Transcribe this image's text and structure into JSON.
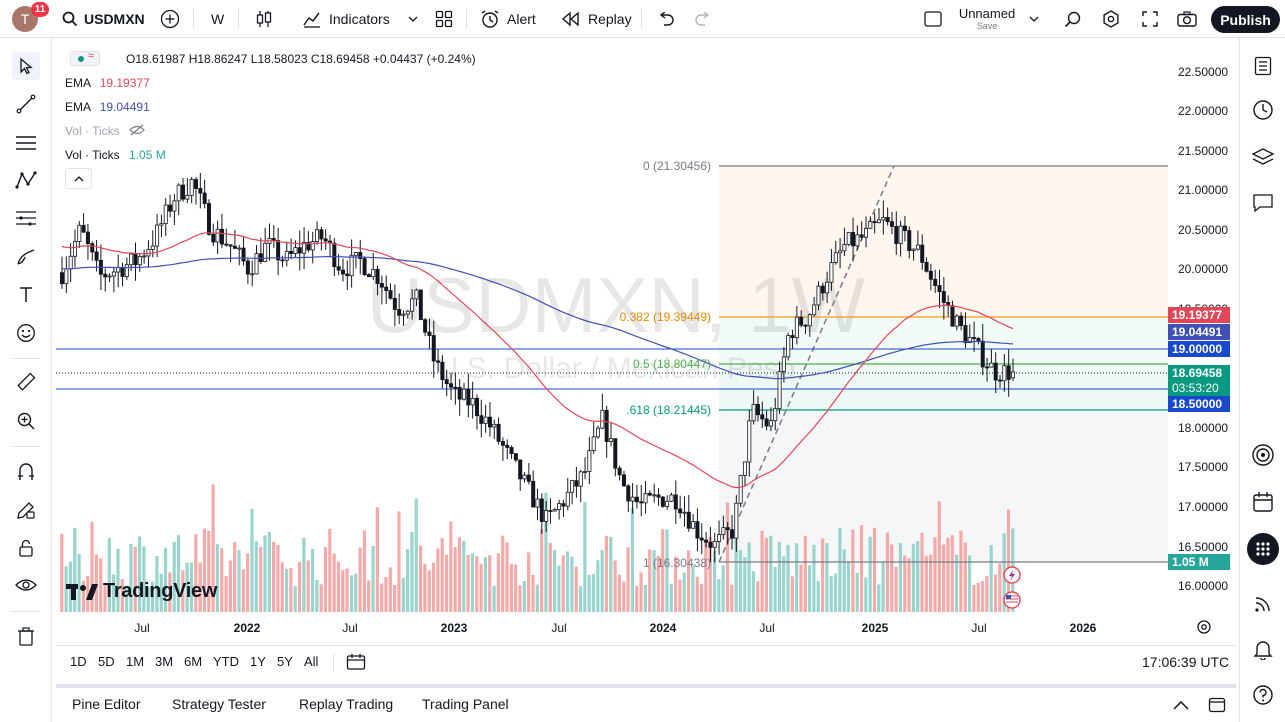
{
  "toolbar": {
    "avatar_letter": "T",
    "notification_count": "11",
    "symbol": "USDMXN",
    "interval": "W",
    "indicators_label": "Indicators",
    "alert_label": "Alert",
    "replay_label": "Replay",
    "layout_name": "Unnamed",
    "layout_status": "Save",
    "publish_label": "Publish"
  },
  "legend": {
    "ohlc": "O18.61987 H18.86247 L18.58023 C18.69458 +0.04437 (+0.24%)",
    "ema1_label": "EMA",
    "ema1_value": "19.19377",
    "ema2_label": "EMA",
    "ema2_value": "19.04491",
    "vol_hidden_label": "Vol · Ticks",
    "vol_label": "Vol · Ticks",
    "vol_value": "1.05 M"
  },
  "watermark": {
    "title": "USDMXN, 1W",
    "subtitle": "U.S. Dollar / Mexican Peso"
  },
  "brand": "TradingView",
  "colors": {
    "up": "#26a69a",
    "down": "#131722",
    "ema_fast": "#e04858",
    "ema_slow": "#3f51b5",
    "fib_382": "#f59c1a",
    "fib_500": "#4caf50",
    "fib_618": "#089981",
    "hline_blue": "#1848cc",
    "vol_up": "#9ad4ce",
    "vol_down": "#f4aaa8"
  },
  "price_axis": {
    "ticks": [
      "22.50000",
      "22.00000",
      "21.50000",
      "21.00000",
      "20.50000",
      "20.00000",
      "19.50000",
      "18.00000",
      "17.50000",
      "17.00000",
      "16.50000",
      "16.00000"
    ],
    "badges": {
      "ema_fast": "19.19377",
      "ema_slow": "19.04491",
      "line_19": "19.00000",
      "last_price": "18.69458",
      "countdown": "03:53:20",
      "line_185": "18.50000",
      "volume": "1.05 M"
    }
  },
  "time_axis": [
    "Jul",
    "2022",
    "Jul",
    "2023",
    "Jul",
    "2024",
    "Jul",
    "2025",
    "Jul",
    "2026"
  ],
  "range_buttons": [
    "1D",
    "5D",
    "1M",
    "3M",
    "6M",
    "YTD",
    "1Y",
    "5Y",
    "All"
  ],
  "clock": "17:06:39 UTC",
  "bottom_tabs": [
    "Pine Editor",
    "Strategy Tester",
    "Replay Trading",
    "Trading Panel"
  ],
  "fib": {
    "level_0": "0 (21.30456)",
    "level_382": "0.382 (19.39449)",
    "level_500": "0.5 (18.80447)",
    "level_618": ".618 (18.21445)",
    "level_1": "1 (16.30438)"
  },
  "chart_data": {
    "type": "candlestick",
    "symbol": "USDMXN",
    "interval": "1W",
    "ylim": [
      15.8,
      22.8
    ],
    "x_ticks": [
      "Jul",
      "2022",
      "Jul",
      "2023",
      "Jul",
      "2024",
      "Jul",
      "2025",
      "Jul",
      "2026"
    ],
    "last": {
      "open": 18.61987,
      "high": 18.86247,
      "low": 18.58023,
      "close": 18.69458,
      "change": 0.04437,
      "change_pct": 0.24
    },
    "ema": [
      {
        "name": "EMA",
        "value": 19.19377
      },
      {
        "name": "EMA",
        "value": 19.04491
      }
    ],
    "horizontal_lines": [
      19.0,
      18.5
    ],
    "fibonacci": [
      {
        "level": 0,
        "price": 21.30456
      },
      {
        "level": 0.382,
        "price": 19.39449
      },
      {
        "level": 0.5,
        "price": 18.80447
      },
      {
        "level": 0.618,
        "price": 18.21445
      },
      {
        "level": 1,
        "price": 16.30438
      }
    ],
    "volume_last": "1.05 M",
    "price_path": [
      [
        "2021-05",
        19.95
      ],
      [
        "2021-06",
        20.5
      ],
      [
        "2021-07",
        19.9
      ],
      [
        "2021-08",
        20.0
      ],
      [
        "2021-09",
        20.1
      ],
      [
        "2021-10",
        20.4
      ],
      [
        "2021-11",
        20.9
      ],
      [
        "2021-12",
        21.1
      ],
      [
        "2022-01",
        20.5
      ],
      [
        "2022-02",
        20.3
      ],
      [
        "2022-03",
        20.0
      ],
      [
        "2022-04",
        20.3
      ],
      [
        "2022-05",
        20.1
      ],
      [
        "2022-06",
        20.3
      ],
      [
        "2022-07",
        20.4
      ],
      [
        "2022-08",
        20.0
      ],
      [
        "2022-09",
        20.1
      ],
      [
        "2022-10",
        19.9
      ],
      [
        "2022-11",
        19.5
      ],
      [
        "2022-12",
        19.6
      ],
      [
        "2023-01",
        18.8
      ],
      [
        "2023-02",
        18.4
      ],
      [
        "2023-03",
        18.3
      ],
      [
        "2023-04",
        18.0
      ],
      [
        "2023-05",
        17.6
      ],
      [
        "2023-06",
        17.2
      ],
      [
        "2023-07",
        16.8
      ],
      [
        "2023-08",
        17.1
      ],
      [
        "2023-09",
        17.4
      ],
      [
        "2023-10",
        18.1
      ],
      [
        "2023-11",
        17.3
      ],
      [
        "2023-12",
        17.0
      ],
      [
        "2024-01",
        17.1
      ],
      [
        "2024-02",
        17.1
      ],
      [
        "2024-03",
        16.7
      ],
      [
        "2024-04",
        16.5
      ],
      [
        "2024-05",
        16.7
      ],
      [
        "2024-06",
        18.2
      ],
      [
        "2024-07",
        18.0
      ],
      [
        "2024-08",
        19.2
      ],
      [
        "2024-09",
        19.4
      ],
      [
        "2024-10",
        19.9
      ],
      [
        "2024-11",
        20.3
      ],
      [
        "2024-12",
        20.4
      ],
      [
        "2025-01",
        20.6
      ],
      [
        "2025-02",
        20.4
      ],
      [
        "2025-03",
        20.2
      ],
      [
        "2025-04",
        19.7
      ],
      [
        "2025-05",
        19.3
      ],
      [
        "2025-06",
        19.0
      ],
      [
        "2025-07",
        18.7
      ],
      [
        "2025-08",
        18.69458
      ]
    ]
  }
}
